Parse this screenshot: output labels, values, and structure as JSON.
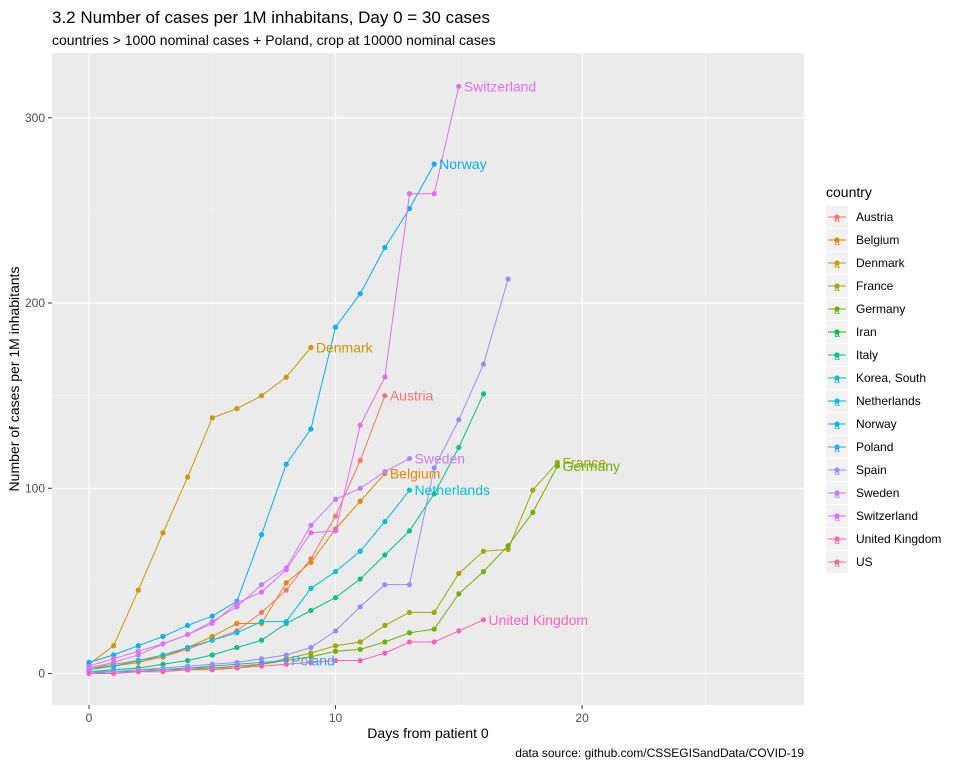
{
  "chart_data": {
    "type": "line",
    "title": "3.2 Number of cases per 1M inhabitans, Day 0 = 30 cases",
    "subtitle": "countries > 1000 nominal cases + Poland, crop at 10000 nominal cases",
    "xlabel": "Days from patient 0",
    "ylabel": "Number of cases per 1M inhabitants",
    "caption": "data source: github.com/CSSEGISandData/COVID-19",
    "xlim": [
      -1.5,
      29
    ],
    "ylim": [
      -17,
      335
    ],
    "x_ticks": [
      0,
      10,
      20
    ],
    "y_ticks": [
      0,
      100,
      200,
      300
    ],
    "grid": true,
    "legend": {
      "title": "country",
      "position": "right"
    },
    "series": [
      {
        "name": "Austria",
        "color": "#F8766D",
        "label": "Austria",
        "x": [
          0,
          1,
          2,
          3,
          4,
          5,
          6,
          7,
          8,
          9,
          10,
          11,
          12
        ],
        "y": [
          3,
          5,
          7,
          9,
          13,
          18,
          23,
          33,
          45,
          62,
          85,
          115,
          150
        ]
      },
      {
        "name": "Belgium",
        "color": "#E58700",
        "label": "Belgium",
        "x": [
          0,
          1,
          2,
          3,
          4,
          5,
          6,
          7,
          8,
          9,
          10,
          11,
          12
        ],
        "y": [
          3,
          4,
          6,
          9,
          14,
          20,
          27,
          27,
          49,
          60,
          78,
          93,
          108
        ]
      },
      {
        "name": "Denmark",
        "color": "#C99800",
        "label": "Denmark",
        "x": [
          0,
          1,
          2,
          3,
          4,
          5,
          6,
          7,
          8,
          9
        ],
        "y": [
          5,
          15,
          45,
          76,
          106,
          138,
          143,
          150,
          160,
          176
        ]
      },
      {
        "name": "France",
        "color": "#A3A500",
        "label": "France",
        "x": [
          0,
          1,
          2,
          3,
          4,
          5,
          6,
          7,
          8,
          9,
          10,
          11,
          12,
          13,
          14,
          15,
          16,
          17,
          18,
          19
        ],
        "y": [
          1,
          1,
          2,
          2,
          3,
          3,
          4,
          5,
          8,
          11,
          15,
          17,
          26,
          33,
          33,
          54,
          66,
          67,
          99,
          114
        ]
      },
      {
        "name": "Germany",
        "color": "#6BB100",
        "label": "Germany",
        "x": [
          0,
          1,
          2,
          3,
          4,
          5,
          6,
          7,
          8,
          9,
          10,
          11,
          12,
          13,
          14,
          15,
          16,
          17,
          18,
          19
        ],
        "y": [
          1,
          1,
          1,
          2,
          2,
          3,
          3,
          5,
          7,
          9,
          12,
          13,
          17,
          22,
          24,
          43,
          55,
          69,
          87,
          112
        ]
      },
      {
        "name": "Iran",
        "color": "#00BA38",
        "label": "",
        "x": [],
        "y": []
      },
      {
        "name": "Italy",
        "color": "#00C08B",
        "label": "",
        "x": [
          0,
          1,
          2,
          3,
          4,
          5,
          6,
          7,
          8,
          9,
          10,
          11,
          12,
          13,
          14,
          15,
          16
        ],
        "y": [
          1,
          2,
          3,
          5,
          7,
          10,
          14,
          18,
          27,
          34,
          41,
          51,
          64,
          77,
          97,
          122,
          151
        ]
      },
      {
        "name": "Korea, South",
        "color": "#00BFC4",
        "label": "",
        "x": [],
        "y": []
      },
      {
        "name": "Netherlands",
        "color": "#00BCD8",
        "label": "Netherlands",
        "x": [
          0,
          1,
          2,
          3,
          4,
          5,
          6,
          7,
          8,
          9,
          10,
          11,
          12,
          13
        ],
        "y": [
          2,
          4,
          7,
          10,
          14,
          18,
          22,
          28,
          28,
          46,
          55,
          66,
          82,
          99
        ]
      },
      {
        "name": "Norway",
        "color": "#00B0F6",
        "label": "Norway",
        "x": [
          0,
          1,
          2,
          3,
          4,
          5,
          6,
          7,
          8,
          9,
          10,
          11,
          12,
          13,
          14
        ],
        "y": [
          6,
          10,
          15,
          20,
          26,
          31,
          39,
          75,
          113,
          132,
          187,
          205,
          230,
          251,
          275
        ]
      },
      {
        "name": "Poland",
        "color": "#35A2FF",
        "label": "Poland",
        "x": [
          0,
          1,
          2,
          3,
          4,
          5,
          6,
          7,
          8
        ],
        "y": [
          0,
          1,
          1,
          2,
          3,
          4,
          5,
          6,
          7
        ]
      },
      {
        "name": "Spain",
        "color": "#9590FF",
        "label": "",
        "x": [
          0,
          1,
          2,
          3,
          4,
          5,
          6,
          7,
          8,
          9,
          10,
          11,
          12,
          13,
          14,
          15,
          16,
          17
        ],
        "y": [
          1,
          1,
          2,
          3,
          4,
          5,
          6,
          8,
          10,
          14,
          23,
          36,
          48,
          48,
          111,
          137,
          167,
          213
        ]
      },
      {
        "name": "Sweden",
        "color": "#C77CFF",
        "label": "Sweden",
        "x": [
          0,
          1,
          2,
          3,
          4,
          5,
          6,
          7,
          8,
          9,
          10,
          11,
          12,
          13
        ],
        "y": [
          3,
          6,
          10,
          16,
          21,
          28,
          36,
          48,
          57,
          80,
          94,
          100,
          109,
          116
        ]
      },
      {
        "name": "Switzerland",
        "color": "#E76BF3",
        "label": "Switzerland",
        "x": [
          0,
          1,
          2,
          3,
          4,
          5,
          6,
          7,
          8,
          9,
          10,
          11,
          12,
          13,
          14,
          15
        ],
        "y": [
          4,
          8,
          12,
          16,
          21,
          27,
          38,
          44,
          56,
          76,
          77,
          134,
          160,
          259,
          259,
          317
        ]
      },
      {
        "name": "United Kingdom",
        "color": "#FF62BC",
        "label": "United Kingdom",
        "x": [
          0,
          1,
          2,
          3,
          4,
          5,
          6,
          7,
          8,
          9,
          10,
          11,
          12,
          13,
          14,
          15,
          16
        ],
        "y": [
          0,
          0,
          1,
          1,
          2,
          2,
          3,
          4,
          5,
          6,
          7,
          7,
          11,
          17,
          17,
          23,
          29
        ]
      },
      {
        "name": "US",
        "color": "#FF6C91",
        "label": "",
        "x": [],
        "y": []
      }
    ]
  }
}
